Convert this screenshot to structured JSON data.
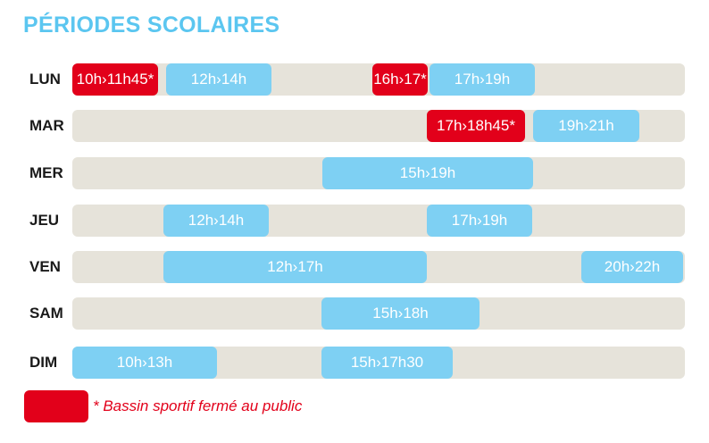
{
  "title": "PÉRIODES SCOLAIRES",
  "days": [
    {
      "label": "LUN",
      "slots": [
        {
          "text": "10h›11h45*",
          "type": "closed"
        },
        {
          "text": "12h›14h",
          "type": "public"
        },
        {
          "text": "16h›17*",
          "type": "closed"
        },
        {
          "text": "17h›19h",
          "type": "public"
        }
      ]
    },
    {
      "label": "MAR",
      "slots": [
        {
          "text": "17h›18h45*",
          "type": "closed"
        },
        {
          "text": "19h›21h",
          "type": "public"
        }
      ]
    },
    {
      "label": "MER",
      "slots": [
        {
          "text": "15h›19h",
          "type": "public"
        }
      ]
    },
    {
      "label": "JEU",
      "slots": [
        {
          "text": "12h›14h",
          "type": "public"
        },
        {
          "text": "17h›19h",
          "type": "public"
        }
      ]
    },
    {
      "label": "VEN",
      "slots": [
        {
          "text": "12h›17h",
          "type": "public"
        },
        {
          "text": "20h›22h",
          "type": "public"
        }
      ]
    },
    {
      "label": "SAM",
      "slots": [
        {
          "text": "15h›18h",
          "type": "public"
        }
      ]
    },
    {
      "label": "DIM",
      "slots": [
        {
          "text": "10h›13h",
          "type": "public"
        },
        {
          "text": "15h›17h30",
          "type": "public"
        }
      ]
    }
  ],
  "legend": {
    "text": "* Bassin sportif fermé au public"
  },
  "colors": {
    "public": "#7ed0f3",
    "closed": "#e2001a",
    "track": "#e6e3da",
    "title": "#5bc6f0"
  }
}
